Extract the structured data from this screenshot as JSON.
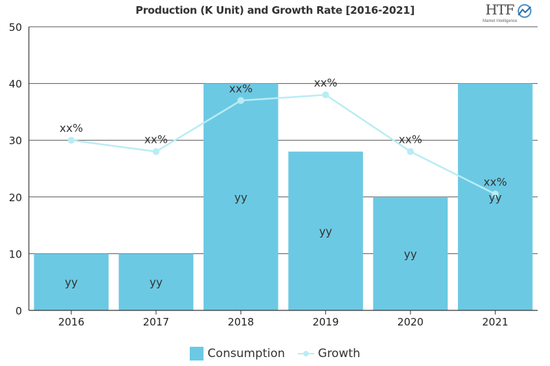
{
  "title": "Production (K Unit) and Growth Rate [2016-2021]",
  "logo": {
    "brand": "HTF",
    "tagline": "Market Intelligence"
  },
  "chart_data": {
    "type": "bar",
    "title": "Production (K Unit) and Growth Rate [2016-2021]",
    "categories": [
      "2016",
      "2017",
      "2018",
      "2019",
      "2020",
      "2021"
    ],
    "ylim": [
      0,
      50
    ],
    "yticks": [
      0,
      10,
      20,
      30,
      40,
      50
    ],
    "grid": true,
    "legend_position": "bottom",
    "series": [
      {
        "name": "Consumption",
        "type": "bar",
        "color": "#6cc9e3",
        "values": [
          10,
          10,
          40,
          28,
          20,
          40
        ],
        "labels": [
          "yy",
          "yy",
          "yy",
          "yy",
          "yy",
          "yy"
        ]
      },
      {
        "name": "Growth",
        "type": "line",
        "color": "#b9ecf5",
        "values": [
          30,
          28,
          37,
          38,
          28,
          20.5
        ],
        "labels": [
          "xx%",
          "xx%",
          "xx%",
          "xx%",
          "xx%",
          "xx%"
        ]
      }
    ]
  }
}
